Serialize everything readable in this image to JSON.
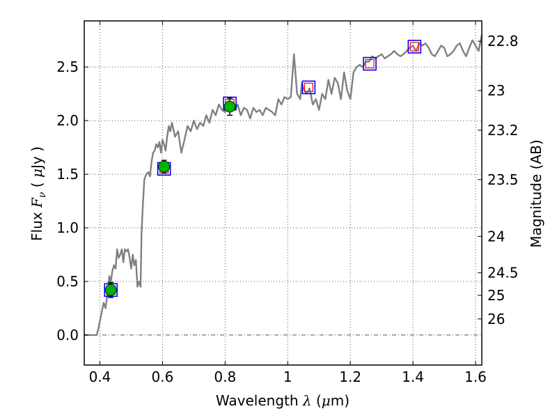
{
  "chart_data": {
    "type": "line",
    "title": "",
    "xlabel": "Wavelength",
    "xlabel_symbol": "λ",
    "xlabel_unit_prefix": "(",
    "xlabel_unit_mu": "μ",
    "xlabel_unit_suffix": "m)",
    "ylabel": "Flux",
    "ylabel_symbol": "F",
    "ylabel_subscript": "ν",
    "ylabel_unit_prefix": "( ",
    "ylabel_unit_mu": "μ",
    "ylabel_unit_suffix": "Jy )",
    "y2label": "Magnitude (AB)",
    "xlim": [
      0.35,
      1.62
    ],
    "ylim": [
      -0.28,
      2.93
    ],
    "grid": true,
    "x_ticks": [
      {
        "value": 0.4,
        "label": "0.4"
      },
      {
        "value": 0.6,
        "label": "0.6"
      },
      {
        "value": 0.8,
        "label": "0.8"
      },
      {
        "value": 1.0,
        "label": "1"
      },
      {
        "value": 1.2,
        "label": "1.2"
      },
      {
        "value": 1.4,
        "label": "1.4"
      },
      {
        "value": 1.6,
        "label": "1.6"
      }
    ],
    "y_ticks": [
      {
        "value": 0.0,
        "label": "0.0"
      },
      {
        "value": 0.5,
        "label": "0.5"
      },
      {
        "value": 1.0,
        "label": "1.0"
      },
      {
        "value": 1.5,
        "label": "1.5"
      },
      {
        "value": 2.0,
        "label": "2.0"
      },
      {
        "value": 2.5,
        "label": "2.5"
      }
    ],
    "y2_ticks": [
      {
        "flux": 2.74,
        "label": "22.8"
      },
      {
        "flux": 2.28,
        "label": "23"
      },
      {
        "flux": 1.91,
        "label": "23.2"
      },
      {
        "flux": 1.45,
        "label": "23.5"
      },
      {
        "flux": 0.92,
        "label": "24"
      },
      {
        "flux": 0.58,
        "label": "24.5"
      },
      {
        "flux": 0.37,
        "label": "25"
      },
      {
        "flux": 0.15,
        "label": "26"
      }
    ],
    "zero_line": 0.0,
    "colors": {
      "spectrum": "#808080",
      "observed_marker": "#00b400",
      "model_box": "#0000ff",
      "model_point": "#ff0000",
      "grid": "#555555"
    },
    "spectrum": {
      "x": [
        0.35,
        0.39,
        0.398,
        0.405,
        0.412,
        0.418,
        0.425,
        0.43,
        0.435,
        0.44,
        0.445,
        0.45,
        0.455,
        0.46,
        0.465,
        0.47,
        0.475,
        0.48,
        0.485,
        0.49,
        0.495,
        0.5,
        0.505,
        0.51,
        0.515,
        0.52,
        0.525,
        0.53,
        0.533,
        0.537,
        0.542,
        0.548,
        0.555,
        0.56,
        0.565,
        0.57,
        0.575,
        0.58,
        0.585,
        0.59,
        0.595,
        0.6,
        0.605,
        0.61,
        0.615,
        0.62,
        0.625,
        0.63,
        0.64,
        0.65,
        0.66,
        0.67,
        0.68,
        0.69,
        0.7,
        0.71,
        0.72,
        0.73,
        0.74,
        0.75,
        0.76,
        0.77,
        0.78,
        0.79,
        0.8,
        0.81,
        0.82,
        0.83,
        0.84,
        0.85,
        0.86,
        0.87,
        0.88,
        0.89,
        0.9,
        0.91,
        0.92,
        0.93,
        0.94,
        0.95,
        0.96,
        0.97,
        0.98,
        0.99,
        1.0,
        1.01,
        1.02,
        1.03,
        1.04,
        1.045,
        1.05,
        1.06,
        1.07,
        1.08,
        1.09,
        1.1,
        1.11,
        1.12,
        1.13,
        1.14,
        1.15,
        1.16,
        1.17,
        1.18,
        1.19,
        1.2,
        1.21,
        1.22,
        1.23,
        1.24,
        1.25,
        1.26,
        1.27,
        1.28,
        1.29,
        1.3,
        1.31,
        1.32,
        1.33,
        1.34,
        1.35,
        1.36,
        1.37,
        1.38,
        1.39,
        1.4,
        1.41,
        1.42,
        1.43,
        1.44,
        1.45,
        1.46,
        1.47,
        1.48,
        1.49,
        1.5,
        1.51,
        1.52,
        1.53,
        1.54,
        1.55,
        1.56,
        1.57,
        1.58,
        1.59,
        1.6,
        1.61,
        1.62
      ],
      "y": [
        0.0,
        0.0,
        0.1,
        0.2,
        0.3,
        0.25,
        0.4,
        0.55,
        0.5,
        0.6,
        0.65,
        0.62,
        0.8,
        0.72,
        0.75,
        0.8,
        0.68,
        0.8,
        0.78,
        0.8,
        0.72,
        0.62,
        0.75,
        0.65,
        0.7,
        0.45,
        0.5,
        0.45,
        0.95,
        1.2,
        1.45,
        1.5,
        1.52,
        1.48,
        1.62,
        1.7,
        1.72,
        1.78,
        1.75,
        1.8,
        1.7,
        1.82,
        1.78,
        1.72,
        1.85,
        1.95,
        1.9,
        1.98,
        1.85,
        1.9,
        1.7,
        1.82,
        1.95,
        1.9,
        2.0,
        1.92,
        1.98,
        1.95,
        2.05,
        1.98,
        2.1,
        2.05,
        2.15,
        2.1,
        2.08,
        2.18,
        2.12,
        2.1,
        2.15,
        2.05,
        2.12,
        2.1,
        2.02,
        2.12,
        2.08,
        2.1,
        2.05,
        2.12,
        2.1,
        2.08,
        2.05,
        2.2,
        2.15,
        2.22,
        2.2,
        2.22,
        2.62,
        2.25,
        2.2,
        2.35,
        2.3,
        2.25,
        2.3,
        2.15,
        2.2,
        2.1,
        2.25,
        2.2,
        2.38,
        2.25,
        2.4,
        2.35,
        2.2,
        2.45,
        2.28,
        2.2,
        2.45,
        2.5,
        2.52,
        2.5,
        2.55,
        2.55,
        2.6,
        2.58,
        2.6,
        2.62,
        2.58,
        2.6,
        2.62,
        2.65,
        2.62,
        2.6,
        2.62,
        2.65,
        2.68,
        2.7,
        2.65,
        2.72,
        2.7,
        2.72,
        2.68,
        2.62,
        2.6,
        2.65,
        2.7,
        2.68,
        2.6,
        2.62,
        2.65,
        2.7,
        2.72,
        2.65,
        2.6,
        2.68,
        2.75,
        2.7,
        2.65,
        2.8
      ]
    },
    "observed": {
      "x": [
        0.435,
        0.605,
        0.815
      ],
      "y": [
        0.42,
        1.57,
        2.13
      ],
      "yerr": [
        0.07,
        0.06,
        0.08
      ]
    },
    "model": {
      "x": [
        0.435,
        0.605,
        0.815,
        1.067,
        1.262,
        1.405
      ],
      "y": [
        0.42,
        1.55,
        2.16,
        2.31,
        2.53,
        2.69
      ]
    }
  }
}
